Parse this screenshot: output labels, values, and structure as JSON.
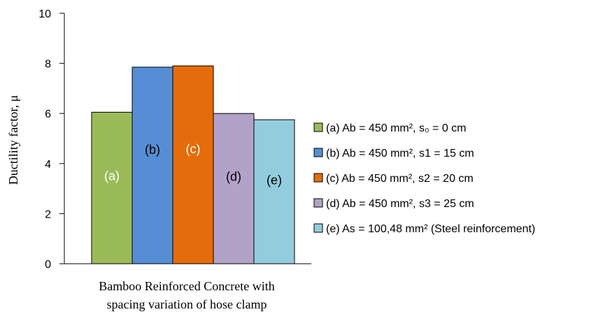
{
  "chart_data": {
    "type": "bar",
    "categories": [
      "Bamboo Reinforced Concrete with spacing variation of hose clamp"
    ],
    "xlabel_lines": [
      "Bamboo Reinforced Concrete with",
      "spacing variation of hose clamp"
    ],
    "ylabel": "Ductility factor, μ",
    "ylim": [
      0,
      10
    ],
    "yticks": [
      0,
      2,
      4,
      6,
      8,
      10
    ],
    "grid": false,
    "legend_position": "right",
    "series": [
      {
        "name": "(a) Ab = 450 mm², s₀ = 0 cm",
        "bar_label": "(a)",
        "values": [
          6.05
        ],
        "color": "#9bbb59",
        "label_color": "#ffffff"
      },
      {
        "name": "(b) Ab = 450 mm², s1 = 15 cm",
        "bar_label": "(b)",
        "values": [
          7.85
        ],
        "color": "#558ed5",
        "label_color": "#000000"
      },
      {
        "name": "(c) Ab = 450 mm², s2 = 20 cm",
        "bar_label": "(c)",
        "values": [
          7.9
        ],
        "color": "#e46c0a",
        "label_color": "#ffffff"
      },
      {
        "name": "(d) Ab = 450 mm², s3 = 25 cm",
        "bar_label": "(d)",
        "values": [
          6.0
        ],
        "color": "#b3a2c7",
        "label_color": "#000000"
      },
      {
        "name": "(e) As = 100,48 mm² (Steel reinforcement)",
        "bar_label": "(e)",
        "values": [
          5.75
        ],
        "color": "#93cddd",
        "label_color": "#000000"
      }
    ]
  }
}
